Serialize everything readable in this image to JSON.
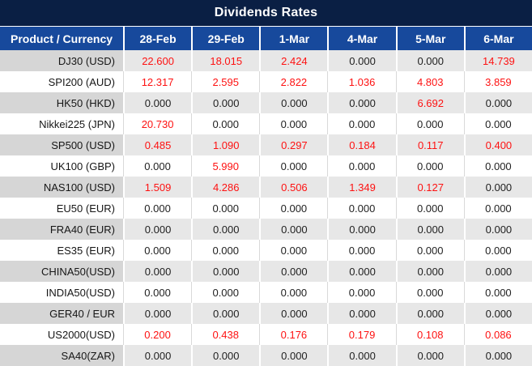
{
  "chart_data": {
    "type": "table",
    "title": "Dividends Rates",
    "columns": [
      "Product / Currency",
      "28-Feb",
      "29-Feb",
      "1-Mar",
      "4-Mar",
      "5-Mar",
      "6-Mar"
    ],
    "rows": [
      {
        "product": "DJ30 (USD)",
        "values": [
          "22.600",
          "18.015",
          "2.424",
          "0.000",
          "0.000",
          "14.739"
        ]
      },
      {
        "product": "SPI200 (AUD)",
        "values": [
          "12.317",
          "2.595",
          "2.822",
          "1.036",
          "4.803",
          "3.859"
        ]
      },
      {
        "product": "HK50 (HKD)",
        "values": [
          "0.000",
          "0.000",
          "0.000",
          "0.000",
          "6.692",
          "0.000"
        ]
      },
      {
        "product": "Nikkei225 (JPN)",
        "values": [
          "20.730",
          "0.000",
          "0.000",
          "0.000",
          "0.000",
          "0.000"
        ]
      },
      {
        "product": "SP500 (USD)",
        "values": [
          "0.485",
          "1.090",
          "0.297",
          "0.184",
          "0.117",
          "0.400"
        ]
      },
      {
        "product": "UK100 (GBP)",
        "values": [
          "0.000",
          "5.990",
          "0.000",
          "0.000",
          "0.000",
          "0.000"
        ]
      },
      {
        "product": "NAS100 (USD)",
        "values": [
          "1.509",
          "4.286",
          "0.506",
          "1.349",
          "0.127",
          "0.000"
        ]
      },
      {
        "product": "EU50 (EUR)",
        "values": [
          "0.000",
          "0.000",
          "0.000",
          "0.000",
          "0.000",
          "0.000"
        ]
      },
      {
        "product": "FRA40 (EUR)",
        "values": [
          "0.000",
          "0.000",
          "0.000",
          "0.000",
          "0.000",
          "0.000"
        ]
      },
      {
        "product": "ES35 (EUR)",
        "values": [
          "0.000",
          "0.000",
          "0.000",
          "0.000",
          "0.000",
          "0.000"
        ]
      },
      {
        "product": "CHINA50(USD)",
        "values": [
          "0.000",
          "0.000",
          "0.000",
          "0.000",
          "0.000",
          "0.000"
        ]
      },
      {
        "product": "INDIA50(USD)",
        "values": [
          "0.000",
          "0.000",
          "0.000",
          "0.000",
          "0.000",
          "0.000"
        ]
      },
      {
        "product": "GER40 / EUR",
        "values": [
          "0.000",
          "0.000",
          "0.000",
          "0.000",
          "0.000",
          "0.000"
        ]
      },
      {
        "product": "US2000(USD)",
        "values": [
          "0.200",
          "0.438",
          "0.176",
          "0.179",
          "0.108",
          "0.086"
        ]
      },
      {
        "product": "SA40(ZAR)",
        "values": [
          "0.000",
          "0.000",
          "0.000",
          "0.000",
          "0.000",
          "0.000"
        ]
      }
    ]
  },
  "colors": {
    "title_bar_bg": "#0a1f44",
    "header_bg": "#17499c",
    "header_text": "#ffffff",
    "nonzero_value": "#fe1212",
    "zero_value": "#1f1f1f",
    "label_text": "#161616",
    "stripe_label_bg": "#d6d6d6",
    "stripe_value_bg": "#e7e7e7",
    "white_row_bg": "#ffffff"
  }
}
